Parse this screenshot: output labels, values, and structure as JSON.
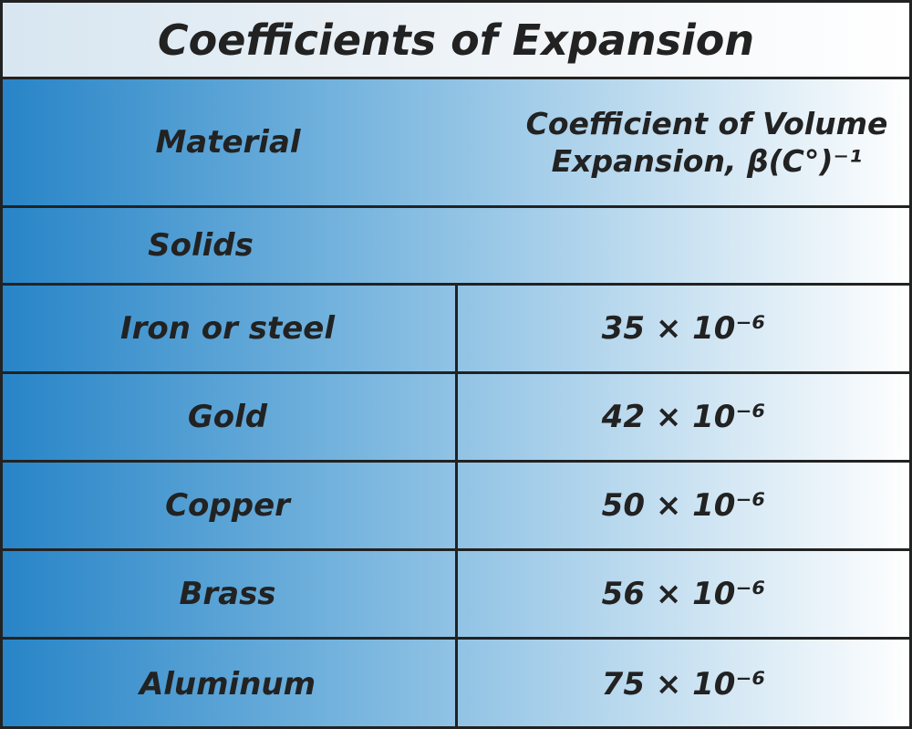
{
  "title": "Coefficients of Expansion",
  "header": [
    "Material",
    "Coefficient of Volume Expansion, β(C°)⁻¹"
  ],
  "section": "Solids",
  "rows": [
    [
      "Iron or steel",
      "35 × 10⁻⁶"
    ],
    [
      "Gold",
      "42 × 10⁻⁶"
    ],
    [
      "Copper",
      "50 × 10⁻⁶"
    ],
    [
      "Brass",
      "56 × 10⁻⁶"
    ],
    [
      "Aluminum",
      "75 × 10⁻⁶"
    ]
  ]
}
